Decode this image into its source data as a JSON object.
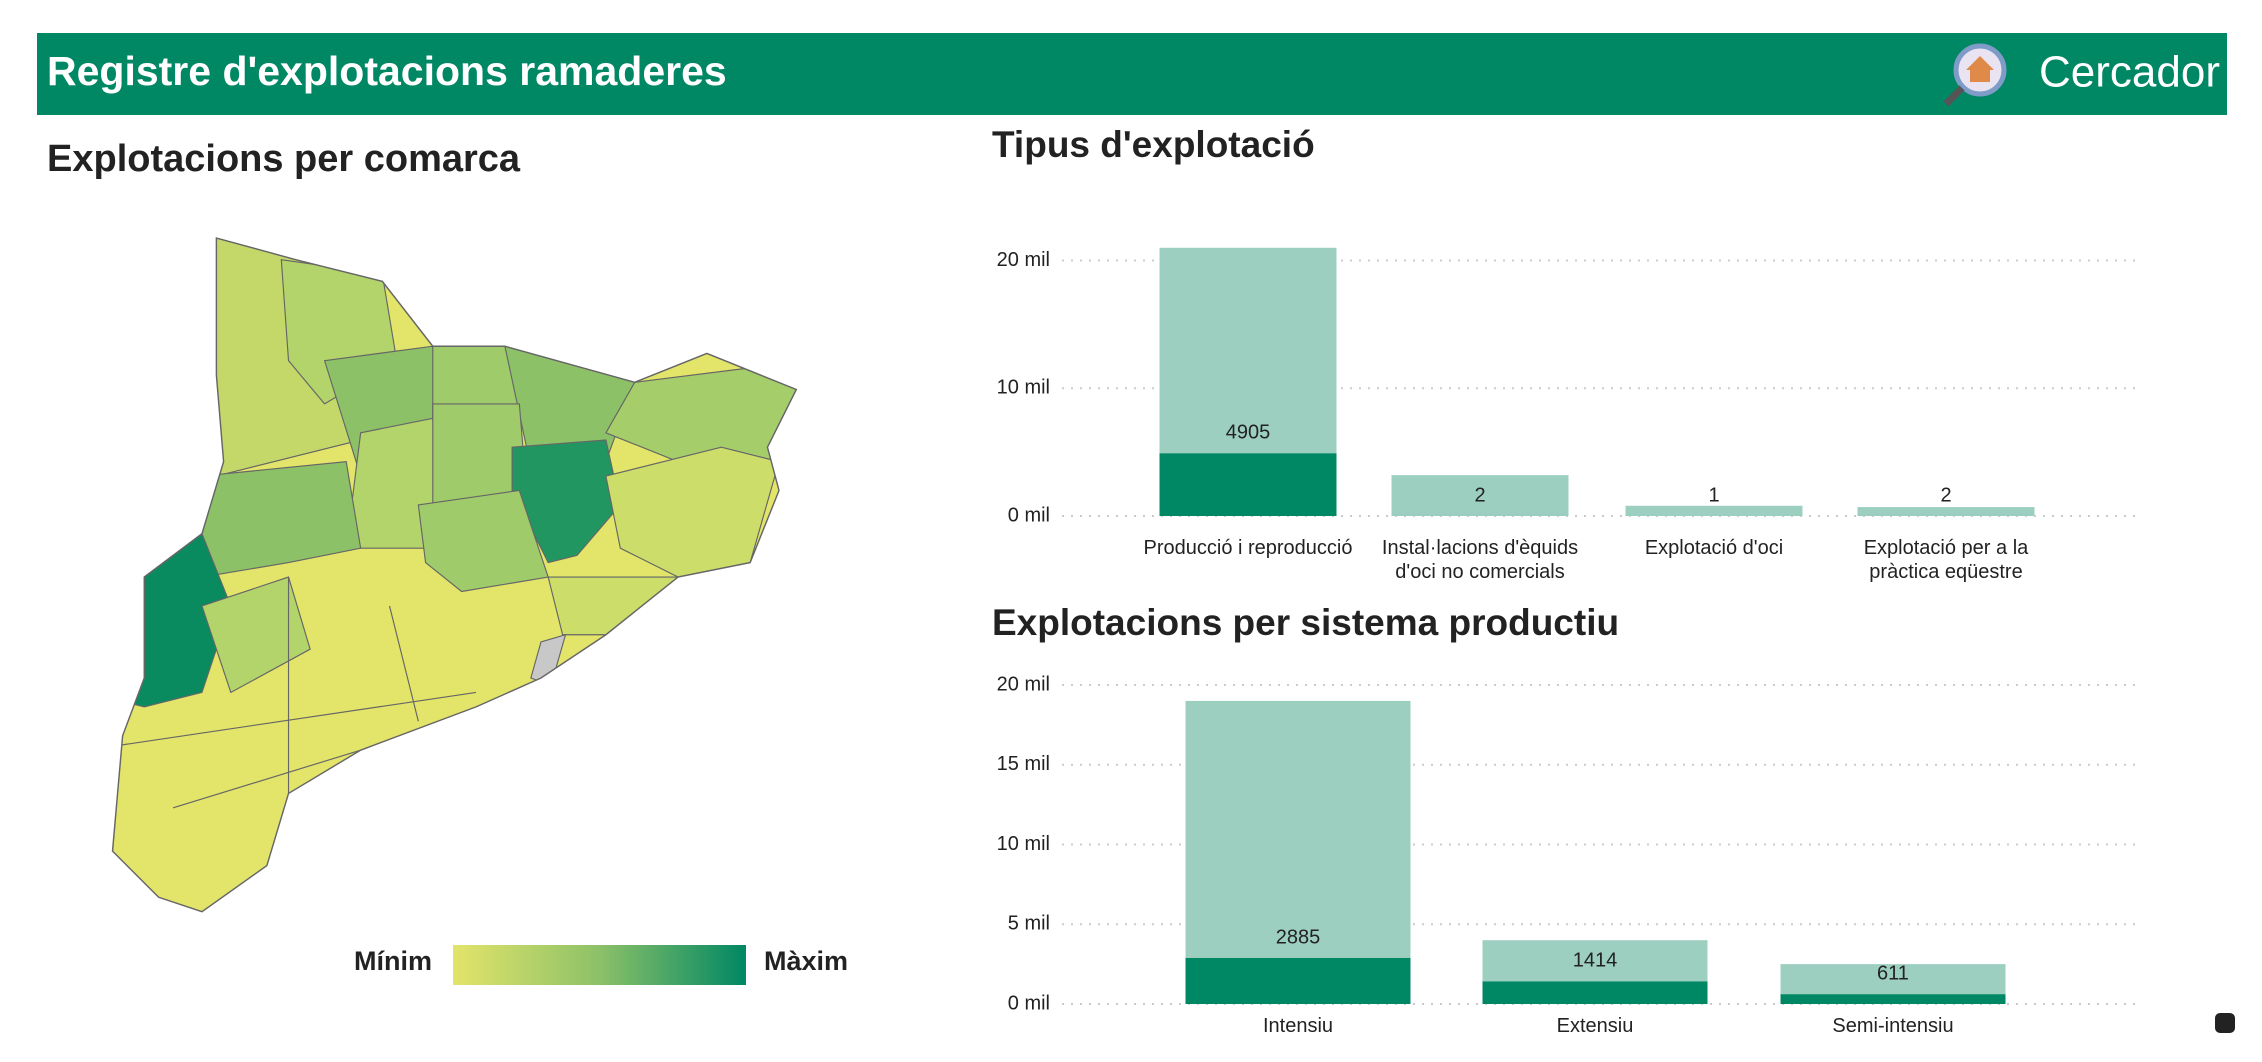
{
  "header": {
    "title": "Registre d'explotacions ramaderes",
    "search": "Cercador"
  },
  "map": {
    "title": "Explotacions per comarca",
    "legend_min": "Mínim",
    "legend_max": "Màxim"
  },
  "chart_data": [
    {
      "type": "bar",
      "title": "Tipus d'explotació",
      "categories": [
        "Producció i reproducció",
        "Instal·lacions d'èquids d'oci no comercials",
        "Explotació d'oci",
        "Explotació per a la pràctica eqüestre"
      ],
      "series": [
        {
          "color": "#9ccfc0",
          "values": [
            21000,
            3200,
            800,
            700
          ]
        },
        {
          "color": "#008764",
          "values": [
            4905,
            2,
            1,
            2
          ]
        }
      ],
      "ylim": [
        0,
        22000
      ],
      "yticks": [
        {
          "value": 0,
          "label": "0 mil"
        },
        {
          "value": 10000,
          "label": "10 mil"
        },
        {
          "value": 20000,
          "label": "20 mil"
        }
      ],
      "grid": true
    },
    {
      "type": "bar",
      "title": "Explotacions per sistema productiu",
      "categories": [
        "Intensiu",
        "Extensiu",
        "Semi-intensiu"
      ],
      "series": [
        {
          "color": "#9ccfc0",
          "values": [
            19000,
            4000,
            2500
          ]
        },
        {
          "color": "#008764",
          "values": [
            2885,
            1414,
            611
          ]
        }
      ],
      "ylim": [
        0,
        20500
      ],
      "yticks": [
        {
          "value": 0,
          "label": "0 mil"
        },
        {
          "value": 5000,
          "label": "5 mil"
        },
        {
          "value": 10000,
          "label": "10 mil"
        },
        {
          "value": 15000,
          "label": "15 mil"
        },
        {
          "value": 20000,
          "label": "20 mil"
        }
      ],
      "grid": true
    }
  ]
}
